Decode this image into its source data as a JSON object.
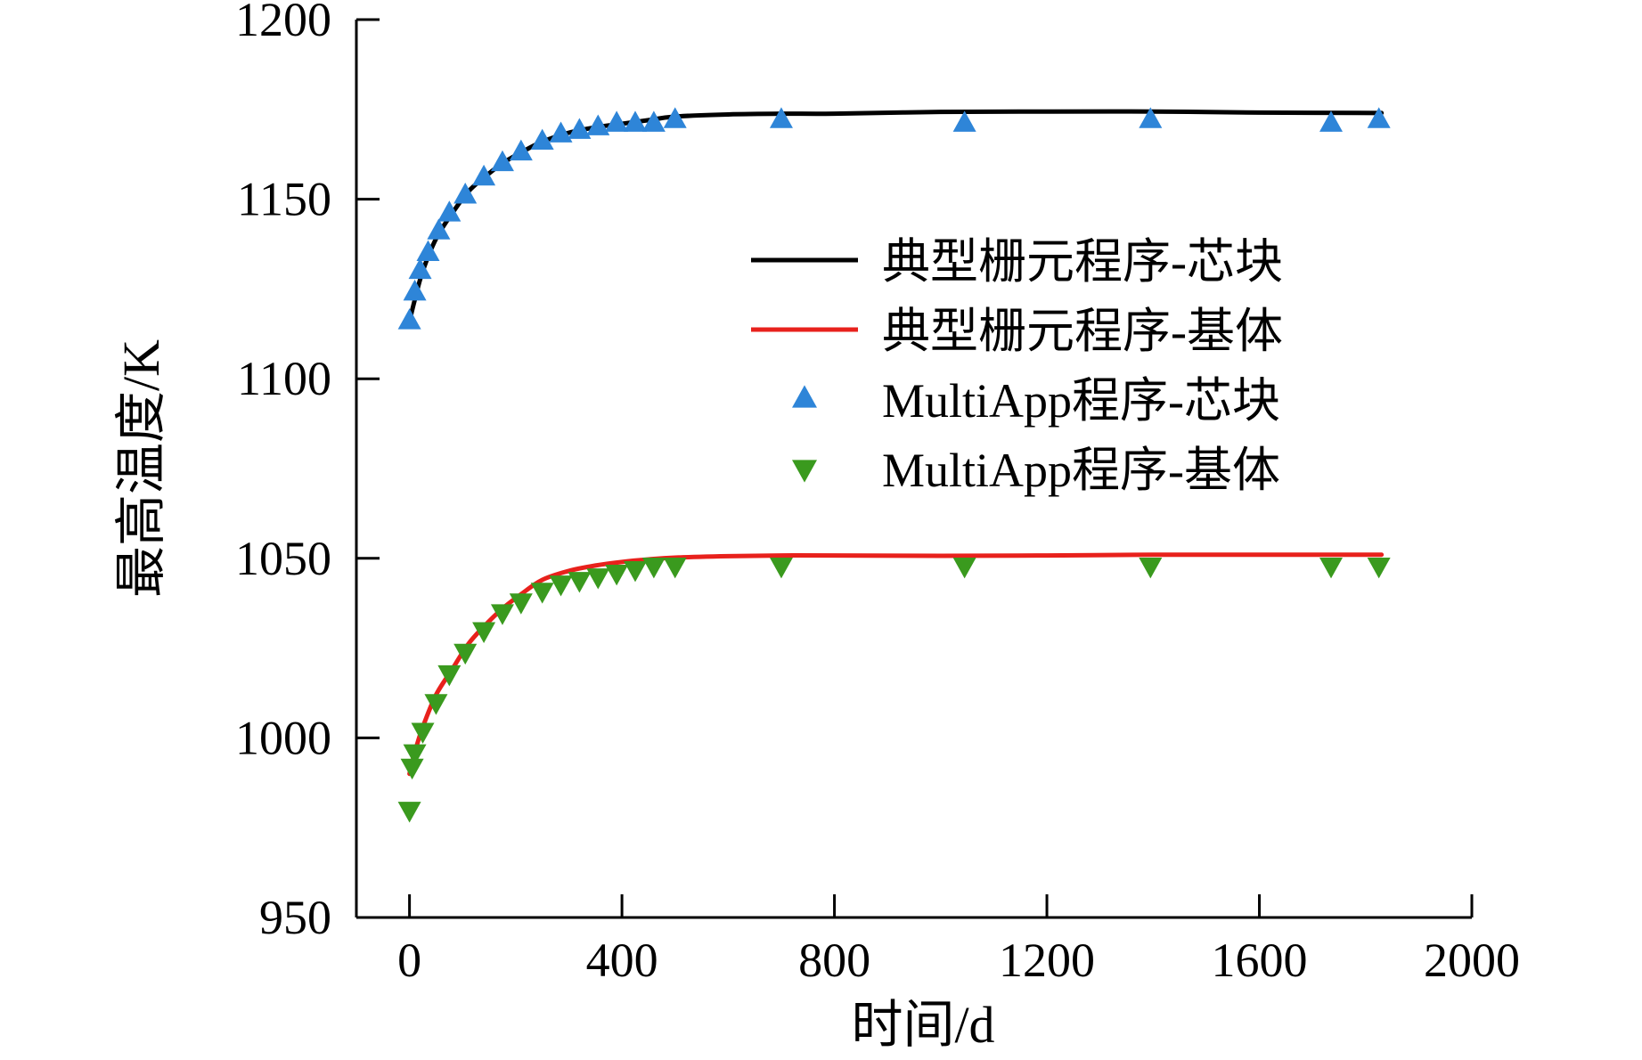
{
  "chart_data": {
    "type": "line",
    "xlabel": "时间/d",
    "ylabel": "最高温度/K",
    "xlim": [
      -100,
      2000
    ],
    "ylim": [
      950,
      1200
    ],
    "x_ticks": [
      0,
      400,
      800,
      1200,
      1600,
      2000
    ],
    "y_ticks": [
      950,
      1000,
      1050,
      1100,
      1150,
      1200
    ],
    "x_tick_labels": [
      "0",
      "400",
      "800",
      "1200",
      "1600",
      "2000"
    ],
    "y_tick_labels": [
      "950",
      "1000",
      "1050",
      "1100",
      "1150",
      "1200"
    ],
    "grid": false,
    "legend_position": "right",
    "series": [
      {
        "name": "典型栅元程序-芯块",
        "kind": "line",
        "color": "#000000",
        "x": [
          0,
          10,
          25,
          50,
          80,
          110,
          140,
          175,
          210,
          250,
          300,
          350,
          400,
          450,
          500,
          600,
          700,
          800,
          1000,
          1200,
          1400,
          1600,
          1830
        ],
        "y": [
          1116,
          1122,
          1130,
          1139,
          1146,
          1152,
          1156,
          1160,
          1163,
          1166,
          1168.5,
          1170,
          1171,
          1172,
          1173,
          1173.6,
          1173.8,
          1173.8,
          1174.3,
          1174.4,
          1174.4,
          1174.1,
          1174
        ]
      },
      {
        "name": "典型栅元程序-基体",
        "kind": "line",
        "color": "#e8211c",
        "x": [
          0,
          10,
          25,
          50,
          80,
          110,
          140,
          175,
          210,
          250,
          300,
          350,
          400,
          450,
          500,
          600,
          700,
          800,
          1000,
          1200,
          1400,
          1600,
          1830
        ],
        "y": [
          990,
          996,
          1003,
          1012,
          1019,
          1026,
          1031,
          1036,
          1040,
          1044,
          1046.5,
          1048,
          1049,
          1049.7,
          1050.2,
          1050.6,
          1050.8,
          1050.8,
          1050.7,
          1050.8,
          1051,
          1051,
          1051
        ]
      },
      {
        "name": "MultiApp程序-芯块",
        "kind": "scatter",
        "marker": "triangle-up",
        "color": "#2e85d8",
        "x": [
          0,
          10,
          20,
          35,
          55,
          75,
          105,
          140,
          175,
          210,
          250,
          285,
          320,
          355,
          390,
          425,
          460,
          500,
          700,
          1045,
          1395,
          1735,
          1825
        ],
        "y": [
          1116,
          1124,
          1130,
          1135,
          1141,
          1146,
          1151,
          1156,
          1160,
          1163,
          1166,
          1168,
          1169,
          1170,
          1171,
          1171,
          1171,
          1172,
          1172,
          1171,
          1172,
          1171,
          1172
        ]
      },
      {
        "name": "MultiApp程序-基体",
        "kind": "scatter",
        "marker": "triangle-down",
        "color": "#3a9a1e",
        "x": [
          0,
          5,
          10,
          25,
          50,
          75,
          105,
          140,
          175,
          210,
          250,
          285,
          320,
          355,
          390,
          425,
          460,
          500,
          700,
          1045,
          1395,
          1735,
          1825
        ],
        "y": [
          980,
          992,
          996,
          1002,
          1010,
          1018,
          1024,
          1030,
          1035,
          1038,
          1041,
          1043,
          1044,
          1045,
          1046,
          1047,
          1048,
          1048,
          1048,
          1048,
          1048,
          1048,
          1048
        ]
      }
    ]
  }
}
